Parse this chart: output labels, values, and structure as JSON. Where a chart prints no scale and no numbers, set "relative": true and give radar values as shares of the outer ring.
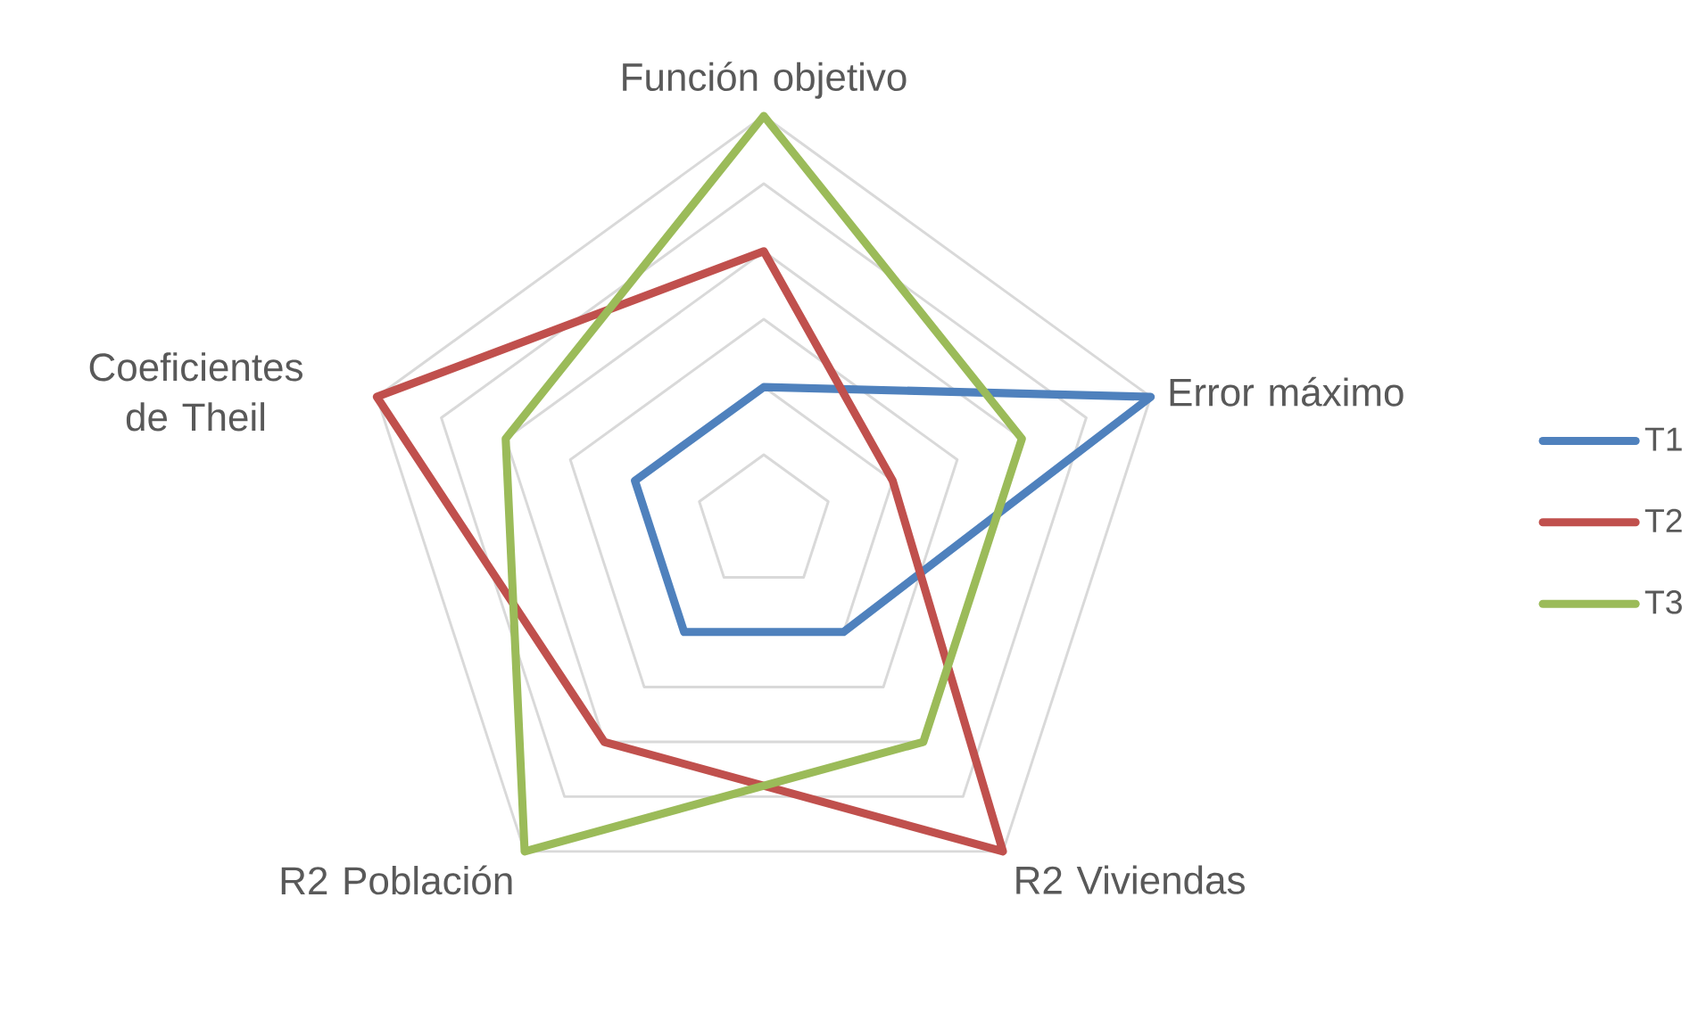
{
  "chart_data": {
    "type": "radar",
    "relative": true,
    "categories": [
      "Función objetivo",
      "Error máximo",
      "R2 Viviendas",
      "R2 Población",
      "Coeficientes de Theil"
    ],
    "series": [
      {
        "name": "T1",
        "color": "#4F81BD",
        "values": [
          0.333,
          1,
          0.333,
          0.333,
          0.333
        ]
      },
      {
        "name": "T2",
        "color": "#C0504D",
        "values": [
          0.667,
          0.333,
          1,
          0.667,
          1
        ]
      },
      {
        "name": "T3",
        "color": "#9BBB59",
        "values": [
          1,
          0.667,
          0.667,
          1,
          0.667
        ]
      }
    ],
    "grid": true,
    "legend": "right"
  }
}
